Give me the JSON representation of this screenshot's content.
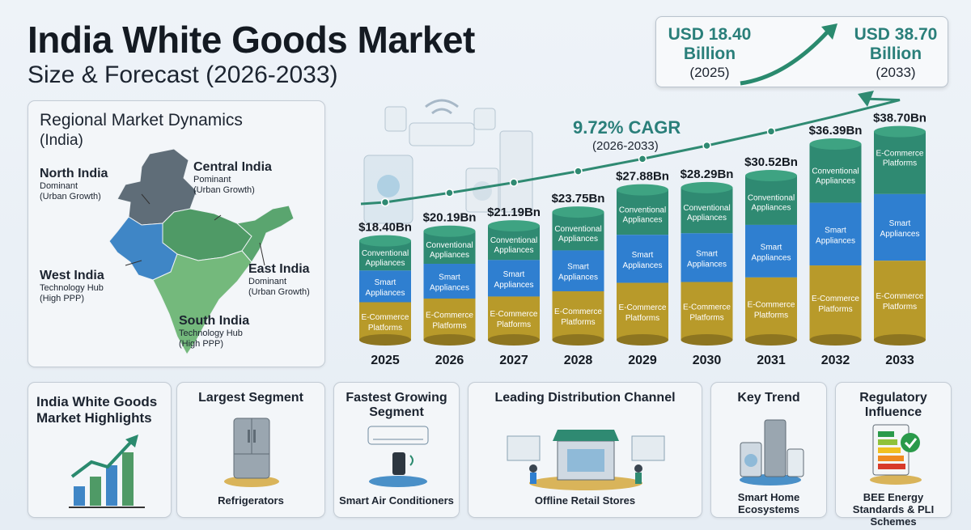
{
  "header": {
    "title": "India White Goods Market",
    "subtitle": "Size & Forecast (2026-2033)"
  },
  "summary": {
    "start_value": "USD 18.40",
    "start_unit": "Billion",
    "start_year": "(2025)",
    "end_value": "USD 38.70",
    "end_unit": "Billion",
    "end_year": "(2033)"
  },
  "regional": {
    "title": "Regional Market Dynamics",
    "subtitle": "(India)",
    "regions": [
      {
        "name": "North India",
        "line1": "Dominant",
        "line2": "(Urban Growth)"
      },
      {
        "name": "Central India",
        "line1": "Pominant",
        "line2": "(Urban Growth)"
      },
      {
        "name": "East India",
        "line1": "Dominant",
        "line2": "(Urban Growth)"
      },
      {
        "name": "West India",
        "line1": "Technology Hub",
        "line2": "(High PPP)"
      },
      {
        "name": "South India",
        "line1": "Technology Hub",
        "line2": "(High PPP)"
      }
    ]
  },
  "cagr": {
    "label": "9.72% CAGR",
    "period": "(2026-2033)"
  },
  "segments": {
    "top1": "Conventional",
    "top2": "Appliances",
    "mid1": "Smart",
    "mid2": "Appliances",
    "bot1": "E-Commerce",
    "bot2": "Platforms",
    "last_top1": "E-Commerce",
    "last_top2": "Platforms"
  },
  "chart_data": {
    "type": "bar",
    "title": "India White Goods Market Size & Forecast (2026-2033)",
    "categories": [
      "2025",
      "2026",
      "2027",
      "2028",
      "2029",
      "2030",
      "2031",
      "2032",
      "2033"
    ],
    "values": [
      18.4,
      20.19,
      21.19,
      23.75,
      27.88,
      28.29,
      30.52,
      36.39,
      38.7
    ],
    "value_labels": [
      "$18.40Bn",
      "$20.19Bn",
      "$21.19Bn",
      "$23.75Bn",
      "$27.88Bn",
      "$28.29Bn",
      "$30.52Bn",
      "$36.39Bn",
      "$38.70Bn"
    ],
    "stack_segments": [
      "E-Commerce Platforms",
      "Smart Appliances",
      "Conventional Appliances"
    ],
    "colors": {
      "top": "#2f8a72",
      "middle": "#2f7fd0",
      "bottom": "#b89a2a"
    },
    "xlabel": "",
    "ylabel": "",
    "grid": false,
    "legend": "none"
  },
  "highlights": {
    "title": "India White Goods Market Highlights",
    "cards": [
      {
        "title": "Largest Segment",
        "caption": "Refrigerators",
        "icon": "refrigerator-icon"
      },
      {
        "title": "Fastest Growing Segment",
        "caption": "Smart Air Conditioners",
        "icon": "air-conditioner-icon"
      },
      {
        "title": "Leading Distribution Channel",
        "caption": "Offline Retail Stores",
        "icon": "retail-store-icon"
      },
      {
        "title": "Key Trend",
        "caption": "Smart Home Ecosystems",
        "icon": "smart-home-icon"
      },
      {
        "title": "Regulatory Influence",
        "caption": "BEE Energy Standards & PLI Schemes",
        "icon": "energy-label-icon"
      }
    ]
  }
}
